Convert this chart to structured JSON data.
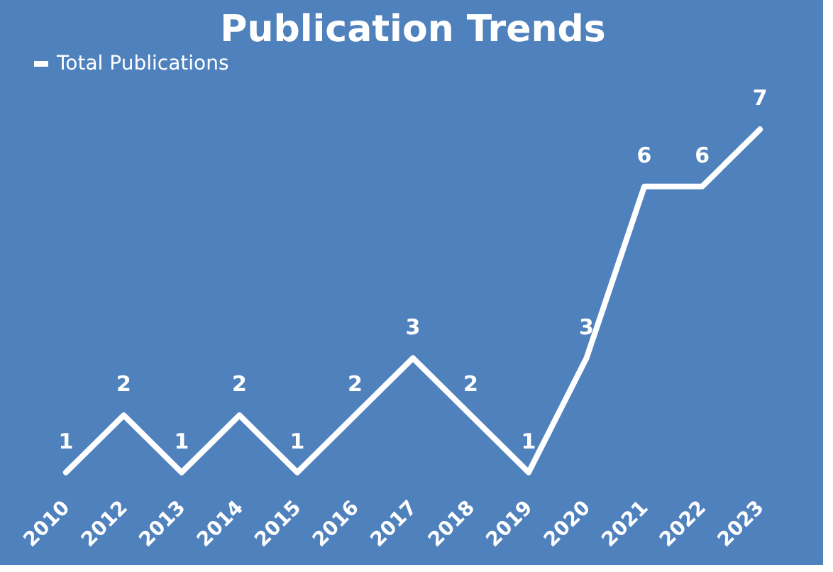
{
  "chart_data": {
    "type": "line",
    "title": "Publication Trends",
    "categories": [
      "2010",
      "2012",
      "2013",
      "2014",
      "2015",
      "2016",
      "2017",
      "2018",
      "2019",
      "2020",
      "2021",
      "2022",
      "2023"
    ],
    "series": [
      {
        "name": "Total Publications",
        "color": "#ffffff",
        "values": [
          1,
          2,
          1,
          2,
          1,
          2,
          3,
          2,
          1,
          3,
          6,
          6,
          7
        ]
      }
    ],
    "data_labels": true,
    "legend": "top",
    "marker": "none",
    "line_style": "solid",
    "grid": false,
    "tick_labels": "x"
  }
}
